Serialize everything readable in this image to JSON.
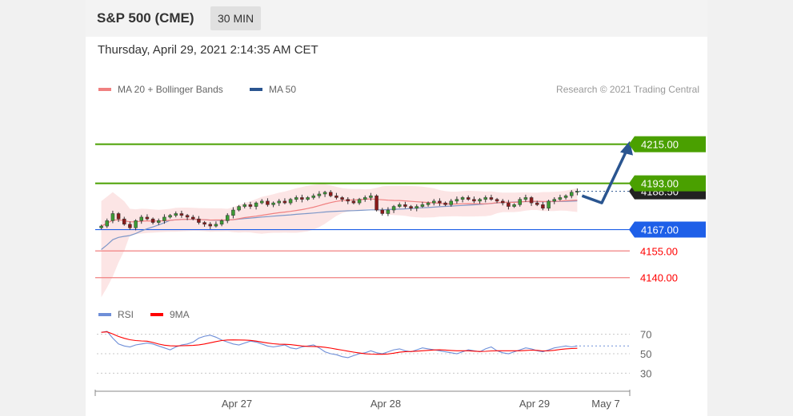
{
  "header": {
    "title": "S&P 500 (CME)",
    "interval": "30 MIN"
  },
  "timestamp": "Thursday, April 29, 2021 2:14:35 AM CET",
  "legend": {
    "items": [
      {
        "label": "MA 20 + Bollinger Bands",
        "color": "#f08080"
      },
      {
        "label": "MA 50",
        "color": "#2a5590"
      }
    ],
    "copyright": "Research © 2021 Trading Central"
  },
  "rsi_legend": {
    "items": [
      {
        "label": "RSI",
        "color": "#6f8fd8"
      },
      {
        "label": "9MA",
        "color": "#ff0000"
      }
    ]
  },
  "colors": {
    "resistance": "#4aa000",
    "pivot": "#1e5fe8",
    "support": "#f08080",
    "support_text": "#ff0000",
    "arrow": "#2a5590"
  },
  "chart_data": [
    {
      "type": "line",
      "title": "",
      "x_ticks": [
        "Apr 27",
        "Apr 28",
        "Apr 29",
        "May 7"
      ],
      "y_range": [
        4130,
        4235
      ],
      "levels": [
        {
          "label": "4215.00",
          "value": 4215.0,
          "kind": "resistance",
          "style": "box"
        },
        {
          "label": "4193.00",
          "value": 4193.0,
          "kind": "resistance",
          "style": "box"
        },
        {
          "label": "4188.50",
          "value": 4188.5,
          "kind": "last",
          "style": "box"
        },
        {
          "label": "4167.00",
          "value": 4167.0,
          "kind": "pivot",
          "style": "box"
        },
        {
          "label": "4155.00",
          "value": 4155.0,
          "kind": "support",
          "style": "text"
        },
        {
          "label": "4140.00",
          "value": 4140.0,
          "kind": "support",
          "style": "text"
        }
      ],
      "price_closes": [
        4169,
        4172,
        4176,
        4173,
        4170,
        4168,
        4172,
        4174,
        4173,
        4171,
        4172,
        4174,
        4175,
        4176,
        4175,
        4174,
        4173,
        4171,
        4170,
        4169,
        4170,
        4172,
        4175,
        4178,
        4180,
        4181,
        4180,
        4182,
        4183,
        4181,
        4182,
        4183,
        4182,
        4184,
        4185,
        4184,
        4185,
        4186,
        4187,
        4188,
        4186,
        4185,
        4184,
        4183,
        4182,
        4184,
        4185,
        4186,
        4178,
        4176,
        4178,
        4180,
        4181,
        4180,
        4179,
        4180,
        4181,
        4182,
        4183,
        4182,
        4181,
        4183,
        4184,
        4185,
        4184,
        4183,
        4184,
        4185,
        4184,
        4183,
        4182,
        4180,
        4181,
        4184,
        4185,
        4182,
        4181,
        4179,
        4183,
        4184,
        4185,
        4186,
        4188,
        4188.5
      ],
      "series": [
        {
          "name": "MA 20 + Bollinger Bands",
          "values": "MA 20 of price_closes"
        },
        {
          "name": "MA 50",
          "values": "MA 50 of price_closes"
        }
      ],
      "forecast_path": [
        4186,
        4182,
        4215
      ]
    },
    {
      "type": "line",
      "title": "",
      "y_ticks": [
        30,
        50,
        70
      ],
      "x_ticks": [
        "Apr 27",
        "Apr 28",
        "Apr 29",
        "May 7"
      ],
      "series": [
        {
          "name": "RSI",
          "values": [
            72,
            73,
            66,
            60,
            58,
            57,
            59,
            60,
            61,
            60,
            58,
            56,
            54,
            57,
            59,
            60,
            62,
            66,
            68,
            69,
            67,
            64,
            62,
            60,
            59,
            61,
            63,
            62,
            60,
            58,
            57,
            58,
            59,
            56,
            55,
            57,
            58,
            59,
            56,
            52,
            50,
            49,
            47,
            46,
            48,
            50,
            51,
            53,
            51,
            50,
            52,
            54,
            55,
            53,
            52,
            54,
            56,
            55,
            54,
            53,
            52,
            51,
            50,
            52,
            54,
            53,
            52,
            55,
            57,
            53,
            51,
            50,
            52,
            54,
            56,
            55,
            53,
            52,
            54,
            56,
            57,
            58,
            57,
            58
          ]
        },
        {
          "name": "9MA",
          "values": "9-period MA of RSI"
        }
      ],
      "rsi_guide": 58
    }
  ]
}
